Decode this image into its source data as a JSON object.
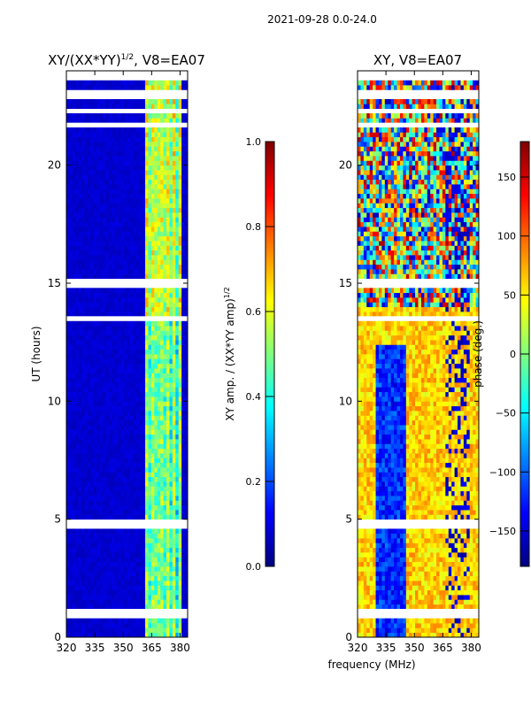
{
  "figure_title": "2021-09-28 0.0-24.0",
  "colors": {
    "colormap": [
      "#00007f",
      "#0000ff",
      "#007fff",
      "#00ffff",
      "#7fff7f",
      "#ffff00",
      "#ff7f00",
      "#ff0000",
      "#7f0000"
    ]
  },
  "chart_data": [
    {
      "type": "heatmap",
      "title_main": "XY/(XX*YY)",
      "title_sup": "1/2",
      "title_suffix": ", V8=EA07",
      "xlabel": "",
      "ylabel": "UT (hours)",
      "xlim": [
        320,
        384
      ],
      "ylim": [
        0,
        24
      ],
      "x_ticks": [
        320,
        335,
        350,
        365,
        380
      ],
      "y_ticks": [
        0,
        5,
        10,
        15,
        20
      ],
      "colorbar": {
        "label_main": "XY amp. / (XX*YY amp)",
        "label_sup": "1/2",
        "range": [
          0,
          1
        ],
        "ticks": [
          "0.0",
          "0.2",
          "0.4",
          "0.6",
          "0.8",
          "1.0"
        ],
        "tick_values": [
          0,
          0.2,
          0.4,
          0.6,
          0.8,
          1.0
        ]
      },
      "description": "Normalized XY amplitude vs frequency and UT; mostly low (~0.05) below 361 MHz, 0.3-0.6 in bands between 361 and 380 MHz; data gaps near 1, 4.7, 13.5, 15 and 21.7-23.8 h"
    },
    {
      "type": "heatmap",
      "title_main": "XY, V8=EA07",
      "xlabel": "frequency (MHz)",
      "ylabel": "",
      "xlim": [
        320,
        384
      ],
      "ylim": [
        0,
        24
      ],
      "x_ticks": [
        320,
        335,
        350,
        365,
        380
      ],
      "y_ticks": [
        0,
        5,
        10,
        15,
        20
      ],
      "colorbar": {
        "label_main": "phase (deg.)",
        "range": [
          -180,
          180
        ],
        "ticks": [
          "−150",
          "−100",
          "−50",
          "0",
          "50",
          "100",
          "150"
        ],
        "tick_values": [
          -150,
          -100,
          -50,
          0,
          50,
          100,
          150
        ]
      },
      "description": "XY phase vs frequency and UT; mostly 0-100 deg at all times, negative phase (~-150 deg) band near 330-345 MHz below 12 h, noisier above 14 h"
    }
  ]
}
